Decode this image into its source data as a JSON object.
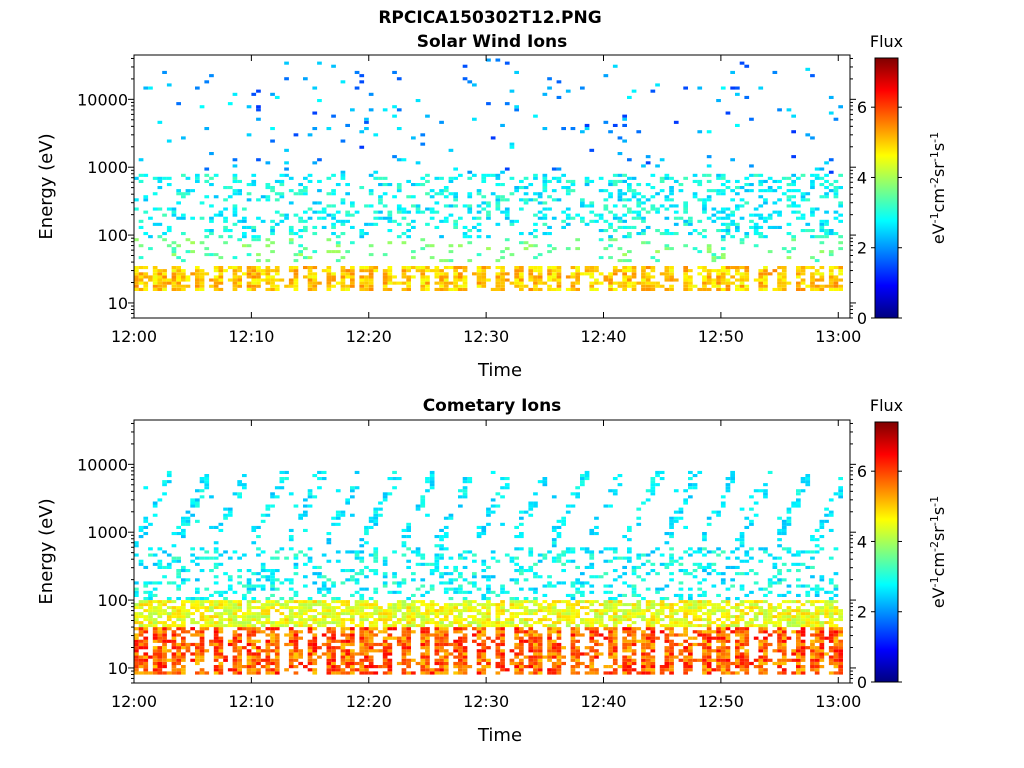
{
  "title": "RPCICA150302T12.PNG",
  "colormap": [
    "#00007f",
    "#0000ff",
    "#007fff",
    "#00ffff",
    "#7fff7f",
    "#ffff00",
    "#ff7f00",
    "#ff0000",
    "#7f0000"
  ],
  "chart_data": [
    {
      "type": "heatmap",
      "title": "Solar Wind Ions",
      "xlabel": "Time",
      "ylabel": "Energy (eV)",
      "x_ticks": [
        "12:00",
        "12:10",
        "12:20",
        "12:30",
        "12:40",
        "12:50",
        "13:00"
      ],
      "xlim": [
        "12:00",
        "13:01"
      ],
      "y_scale": "log",
      "ylim": [
        6,
        45000
      ],
      "y_ticks": [
        10,
        100,
        1000,
        10000
      ],
      "y_tick_labels": [
        "10",
        "100",
        "1000",
        "10000"
      ],
      "colorbar": {
        "label": "Flux",
        "unit": "eV-1cm-2sr-1s-1",
        "range": [
          0,
          7.4
        ],
        "ticks": [
          0,
          2,
          4,
          6
        ]
      },
      "bands": [
        {
          "energy_range_eV": [
            15,
            35
          ],
          "flux_range": [
            4.5,
            5.5
          ],
          "pattern": "bursts every ~1.6 min"
        },
        {
          "energy_range_eV": [
            40,
            90
          ],
          "flux_range": [
            3.0,
            4.0
          ],
          "pattern": "sparse"
        },
        {
          "energy_range_eV": [
            90,
            800
          ],
          "flux_range": [
            2.3,
            3.3
          ],
          "pattern": "scattered, rising toward end"
        },
        {
          "energy_range_eV": [
            800,
            40000
          ],
          "flux_range": [
            1.3,
            2.8
          ],
          "pattern": "sparse high-energy dots"
        }
      ]
    },
    {
      "type": "heatmap",
      "title": "Cometary Ions",
      "xlabel": "Time",
      "ylabel": "Energy (eV)",
      "x_ticks": [
        "12:00",
        "12:10",
        "12:20",
        "12:30",
        "12:40",
        "12:50",
        "13:00"
      ],
      "xlim": [
        "12:00",
        "13:01"
      ],
      "y_scale": "log",
      "ylim": [
        6,
        45000
      ],
      "y_ticks": [
        10,
        100,
        1000,
        10000
      ],
      "y_tick_labels": [
        "10",
        "100",
        "1000",
        "10000"
      ],
      "colorbar": {
        "label": "Flux",
        "unit": "eV-1cm-2sr-1s-1",
        "range": [
          0,
          7.4
        ],
        "ticks": [
          0,
          2,
          4,
          6
        ]
      },
      "bands": [
        {
          "energy_range_eV": [
            8,
            40
          ],
          "flux_range": [
            5.0,
            6.5
          ],
          "pattern": "bursts every ~1.6 min"
        },
        {
          "energy_range_eV": [
            40,
            100
          ],
          "flux_range": [
            4.0,
            5.0
          ],
          "pattern": "near-continuous"
        },
        {
          "energy_range_eV": [
            100,
            600
          ],
          "flux_range": [
            2.3,
            3.3
          ],
          "pattern": "scattered"
        },
        {
          "energy_range_eV": [
            600,
            8000
          ],
          "flux_range": [
            2.3,
            3.0
          ],
          "pattern": "rising arcs every ~3.2 min"
        }
      ]
    }
  ]
}
